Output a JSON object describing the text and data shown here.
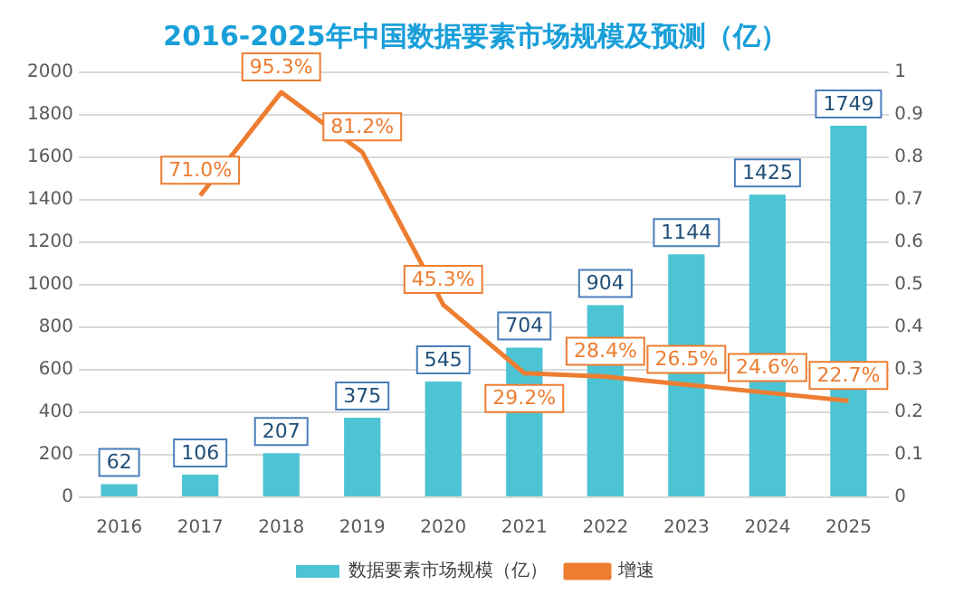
{
  "chart_data": {
    "type": "bar",
    "title": "2016-2025年中国数据要素市场规模及预测（亿）",
    "categories": [
      "2016",
      "2017",
      "2018",
      "2019",
      "2020",
      "2021",
      "2022",
      "2023",
      "2024",
      "2025"
    ],
    "series": [
      {
        "name": "数据要素市场规模（亿）",
        "color": "#4cc4d4",
        "values": [
          62,
          106,
          207,
          375,
          545,
          704,
          904,
          1144,
          1425,
          1749
        ],
        "value_labels": [
          "62",
          "106",
          "207",
          "375",
          "545",
          "704",
          "904",
          "1144",
          "1425",
          "1749"
        ]
      },
      {
        "name": "增速",
        "type": "line",
        "axis": "y2",
        "color": "#ed7d31",
        "values": [
          null,
          0.71,
          0.953,
          0.812,
          0.453,
          0.292,
          0.284,
          0.265,
          0.246,
          0.227
        ],
        "value_labels": [
          null,
          "71.0%",
          "95.3%",
          "81.2%",
          "45.3%",
          "29.2%",
          "28.4%",
          "26.5%",
          "24.6%",
          "22.7%"
        ]
      }
    ],
    "ylim": [
      0,
      2000
    ],
    "yticks": [
      0,
      200,
      400,
      600,
      800,
      1000,
      1200,
      1400,
      1600,
      1800,
      2000
    ],
    "y2lim": [
      0,
      1
    ],
    "y2ticks": [
      0,
      0.1,
      0.2,
      0.3,
      0.4,
      0.5,
      0.6,
      0.7,
      0.8,
      0.9,
      1
    ],
    "grid": "y",
    "legend": "bottom",
    "marker": "none",
    "line_style": "solid"
  }
}
